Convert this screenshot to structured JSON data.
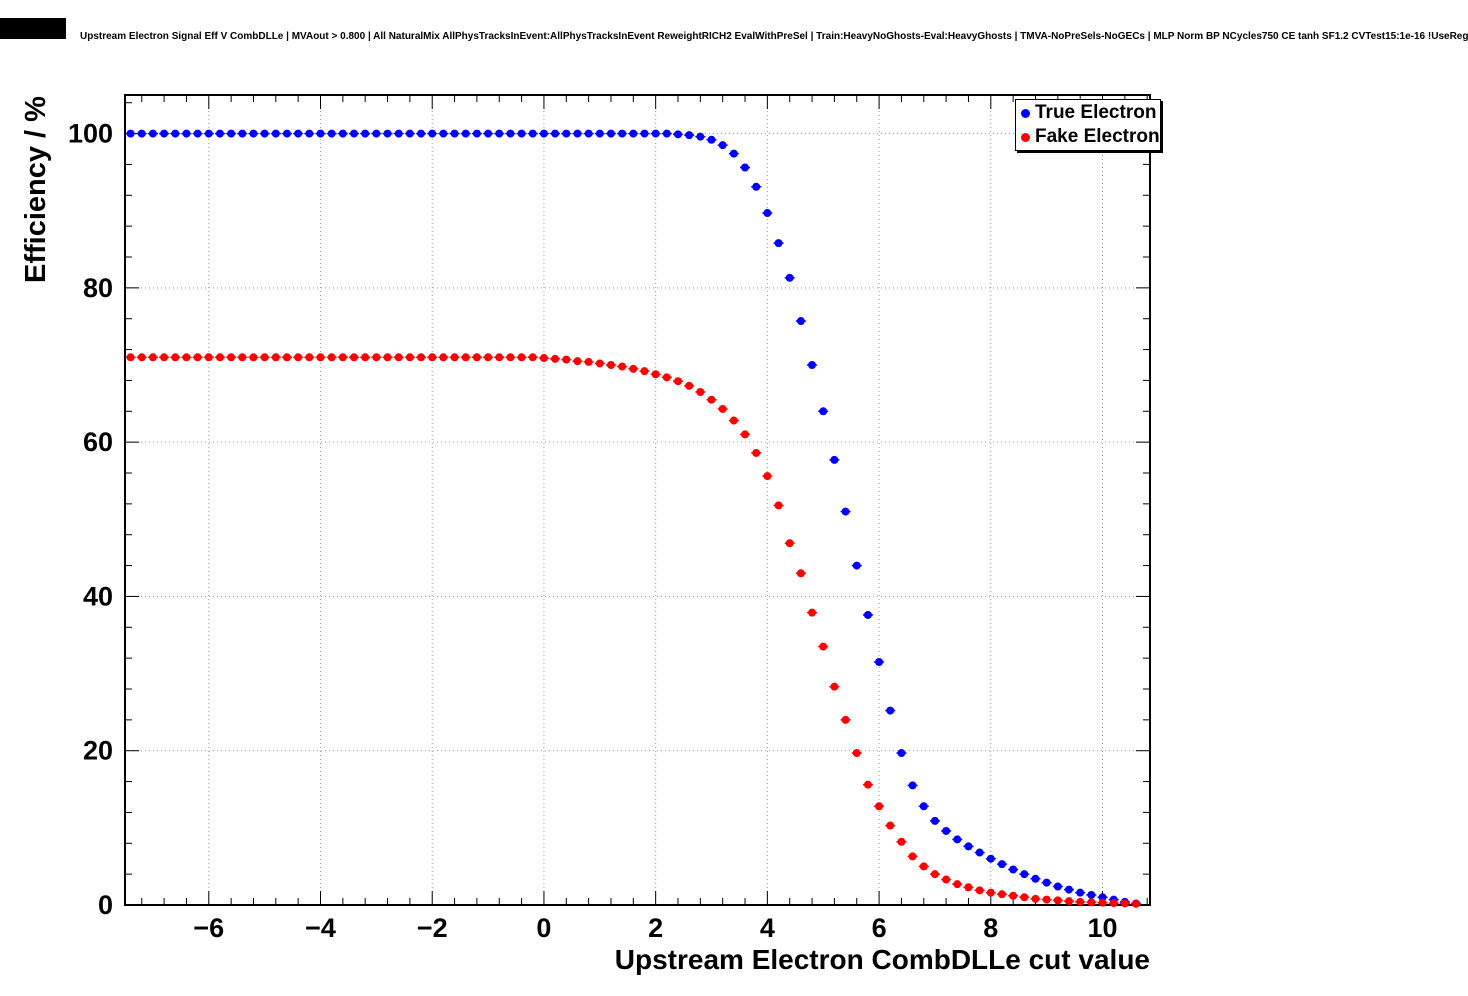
{
  "header": {
    "title": "Upstream Electron Signal Eff V CombDLLe | MVAout > 0.800 | All NaturalMix AllPhysTracksInEvent:AllPhysTracksInEvent ReweightRICH2 EvalWithPreSel | Train:HeavyNoGhosts-Eval:HeavyGhosts | TMVA-NoPreSels-NoGECs | MLP Norm BP NCycles750 CE tanh SF1.2 CVTest15:1e-16 !UseReg"
  },
  "axes": {
    "x_title": "Upstream Electron CombDLLe cut value",
    "y_title": "Efficiency / %"
  },
  "legend": {
    "items": [
      {
        "label": "True Electron",
        "color": "#0000ff"
      },
      {
        "label": "Fake Electron",
        "color": "#ff0000"
      }
    ]
  },
  "chart_data": {
    "type": "scatter",
    "title": "Upstream Electron Signal Eff V CombDLLe | MVAout > 0.800 | All NaturalMix AllPhysTracksInEvent:AllPhysTracksInEvent ReweightRICH2 EvalWithPreSel | Train:HeavyNoGhosts-Eval:HeavyGhosts | TMVA-NoPreSels-NoGECs | MLP Norm BP NCycles750 CE tanh SF1.2 CVTest15:1e-16 !UseReg",
    "xlabel": "Upstream Electron CombDLLe cut value",
    "ylabel": "Efficiency / %",
    "xlim": [
      -7.5,
      10.85
    ],
    "ylim": [
      0,
      105
    ],
    "x_ticks": [
      -6,
      -4,
      -2,
      0,
      2,
      4,
      6,
      8,
      10
    ],
    "y_ticks": [
      0,
      20,
      40,
      60,
      80,
      100
    ],
    "grid": true,
    "legend_position": "top-right",
    "marker": "dot",
    "x": [
      -7.4,
      -7.2,
      -7.0,
      -6.8,
      -6.6,
      -6.4,
      -6.2,
      -6.0,
      -5.8,
      -5.6,
      -5.4,
      -5.2,
      -5.0,
      -4.8,
      -4.6,
      -4.4,
      -4.2,
      -4.0,
      -3.8,
      -3.6,
      -3.4,
      -3.2,
      -3.0,
      -2.8,
      -2.6,
      -2.4,
      -2.2,
      -2.0,
      -1.8,
      -1.6,
      -1.4,
      -1.2,
      -1.0,
      -0.8,
      -0.6,
      -0.4,
      -0.2,
      0.0,
      0.2,
      0.4,
      0.6,
      0.8,
      1.0,
      1.2,
      1.4,
      1.6,
      1.8,
      2.0,
      2.2,
      2.4,
      2.6,
      2.8,
      3.0,
      3.2,
      3.4,
      3.6,
      3.8,
      4.0,
      4.2,
      4.4,
      4.6,
      4.8,
      5.0,
      5.2,
      5.4,
      5.6,
      5.8,
      6.0,
      6.2,
      6.4,
      6.6,
      6.8,
      7.0,
      7.2,
      7.4,
      7.6,
      7.8,
      8.0,
      8.2,
      8.4,
      8.6,
      8.8,
      9.0,
      9.2,
      9.4,
      9.6,
      9.8,
      10.0,
      10.2,
      10.4,
      10.6
    ],
    "series": [
      {
        "name": "True Electron",
        "color": "#0000ff",
        "values": [
          100,
          100,
          100,
          100,
          100,
          100,
          100,
          100,
          100,
          100,
          100,
          100,
          100,
          100,
          100,
          100,
          100,
          100,
          100,
          100,
          100,
          100,
          100,
          100,
          100,
          100,
          100,
          100,
          100,
          100,
          100,
          100,
          100,
          100,
          100,
          100,
          100,
          100,
          100,
          100,
          100,
          100,
          100,
          100,
          100,
          100,
          100,
          100,
          100,
          99.9,
          99.8,
          99.6,
          99.2,
          98.5,
          97.4,
          95.6,
          93.1,
          89.7,
          85.8,
          81.3,
          75.7,
          70.0,
          64.0,
          57.7,
          51.0,
          44.0,
          37.6,
          31.5,
          25.2,
          19.7,
          15.5,
          12.8,
          10.9,
          9.6,
          8.5,
          7.6,
          6.8,
          6.0,
          5.3,
          4.6,
          4.0,
          3.4,
          2.9,
          2.4,
          2.0,
          1.6,
          1.3,
          1.0,
          0.7,
          0.4,
          0.2
        ]
      },
      {
        "name": "Fake Electron",
        "color": "#ff0000",
        "values": [
          71,
          71,
          71,
          71,
          71,
          71,
          71,
          71,
          71,
          71,
          71,
          71,
          71,
          71,
          71,
          71,
          71,
          71,
          71,
          71,
          71,
          71,
          71,
          71,
          71,
          71,
          71,
          71,
          71,
          71,
          71,
          71,
          71,
          71,
          71,
          71,
          71,
          70.9,
          70.8,
          70.7,
          70.5,
          70.4,
          70.2,
          70.0,
          69.8,
          69.5,
          69.2,
          68.8,
          68.4,
          67.9,
          67.3,
          66.5,
          65.5,
          64.3,
          62.8,
          61.0,
          58.6,
          55.6,
          51.8,
          46.9,
          43.0,
          37.9,
          33.5,
          28.3,
          24.0,
          19.7,
          15.6,
          12.8,
          10.3,
          8.2,
          6.3,
          5.0,
          4.0,
          3.3,
          2.7,
          2.3,
          1.9,
          1.6,
          1.4,
          1.2,
          1.0,
          0.8,
          0.7,
          0.6,
          0.5,
          0.4,
          0.35,
          0.3,
          0.25,
          0.2,
          0.15
        ]
      }
    ]
  }
}
